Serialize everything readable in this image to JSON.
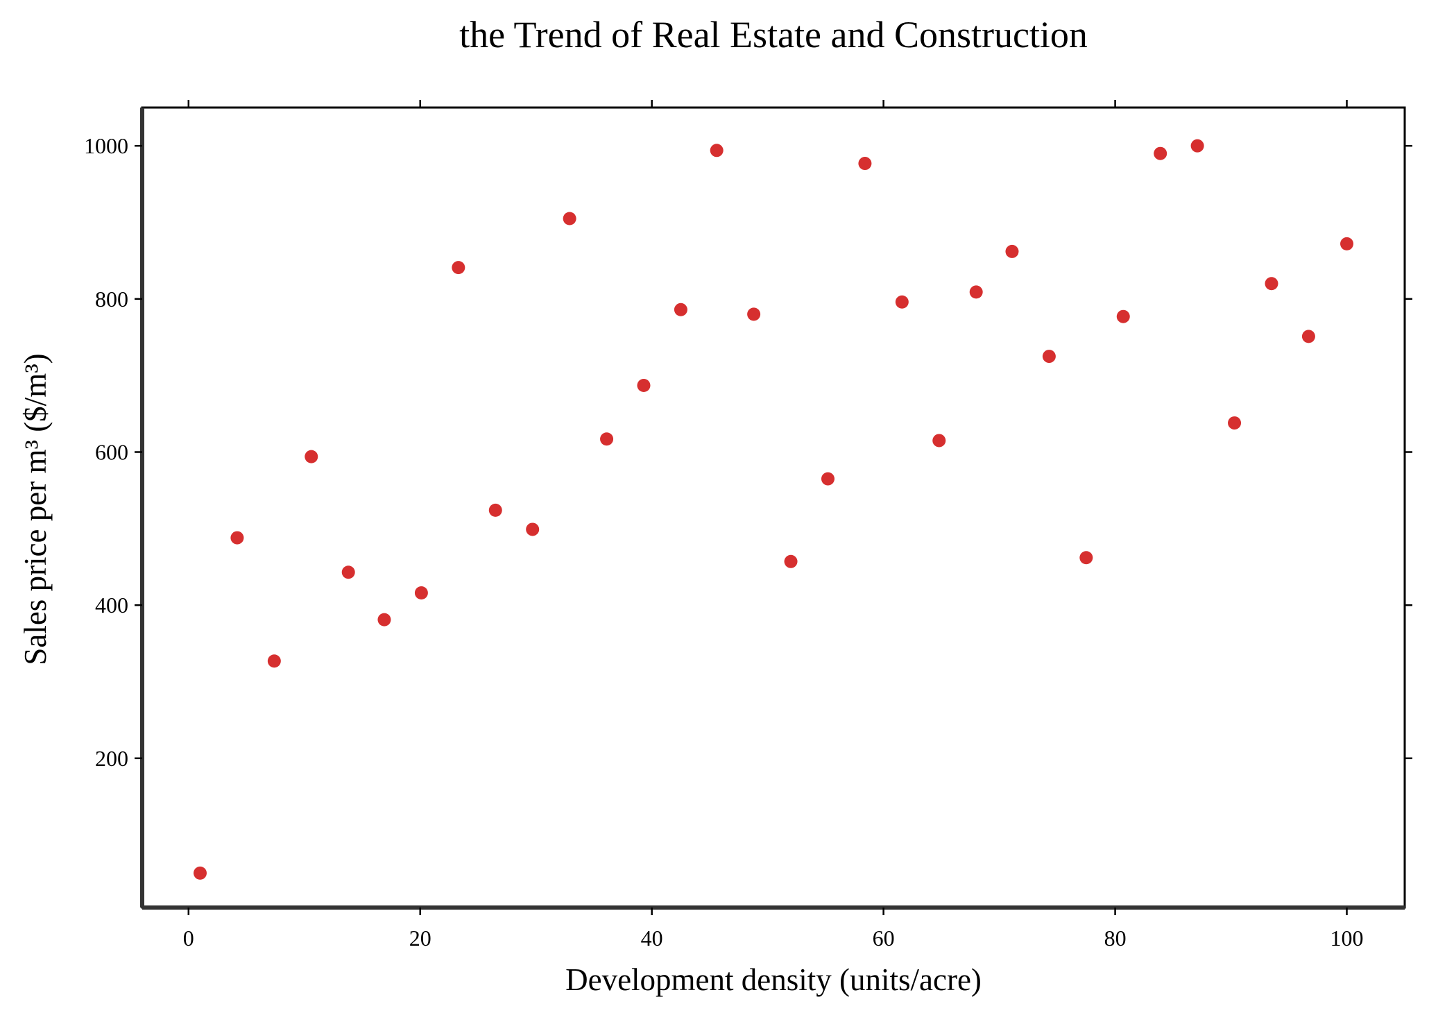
{
  "chart_data": {
    "type": "scatter",
    "title": "the Trend of Real Estate and Construction",
    "xlabel": "Development density (units/acre)",
    "ylabel": "Sales price per m³ ($/m³)",
    "xlim": [
      -4,
      105
    ],
    "ylim": [
      5,
      1050
    ],
    "x_ticks": [
      0,
      20,
      40,
      60,
      80,
      100
    ],
    "y_ticks": [
      200,
      400,
      600,
      800,
      1000
    ],
    "grid": false,
    "marker_color": "#d62f2f",
    "x": [
      1.0,
      4.2,
      7.4,
      10.6,
      13.8,
      16.9,
      20.1,
      23.3,
      26.5,
      29.7,
      32.9,
      36.1,
      39.3,
      42.5,
      45.6,
      48.8,
      52.0,
      55.2,
      58.4,
      61.6,
      64.8,
      68.0,
      71.1,
      74.3,
      77.5,
      80.7,
      83.9,
      87.1,
      90.3,
      93.5,
      96.7,
      100.0
    ],
    "y": [
      50,
      488,
      327,
      594,
      443,
      381,
      416,
      841,
      524,
      499,
      905,
      617,
      687,
      786,
      994,
      780,
      457,
      565,
      977,
      796,
      615,
      809,
      862,
      725,
      462,
      777,
      990,
      1000,
      638,
      820,
      751,
      872
    ]
  }
}
